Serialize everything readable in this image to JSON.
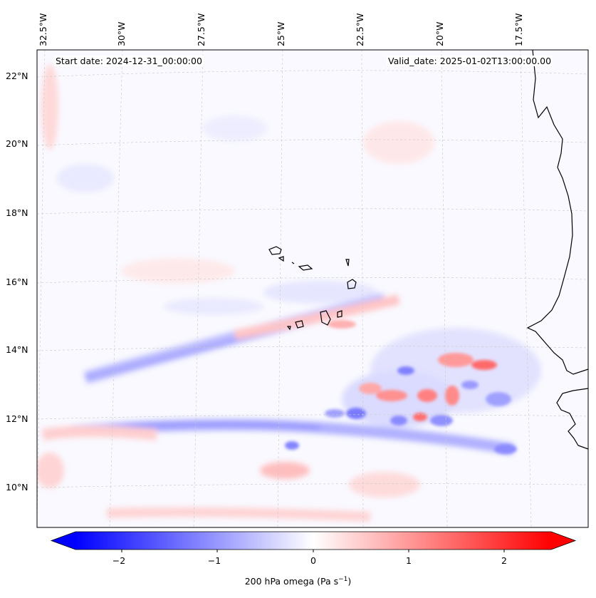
{
  "map": {
    "start_date": "Start date: 2024-12-31_00:00:00",
    "valid_date": "Valid_date: 2025-01-02T13:00:00.00",
    "lon_labels": [
      "32.5°W",
      "30°W",
      "27.5°W",
      "25°W",
      "22.5°W",
      "20°W",
      "17.5°W"
    ],
    "lat_labels": [
      "22°N",
      "20°N",
      "18°N",
      "16°N",
      "14°N",
      "12°N",
      "10°N"
    ],
    "colors": {
      "negative": "#0000ff",
      "zero": "#ffffff",
      "positive": "#ff0000"
    }
  },
  "colorbar": {
    "ticks": [
      "−2",
      "−1",
      "0",
      "1",
      "2"
    ],
    "label": "200 hPa omega (Pa s",
    "label_sup": "−1",
    "label_end": ")",
    "min": -2.75,
    "max": 2.75
  }
}
